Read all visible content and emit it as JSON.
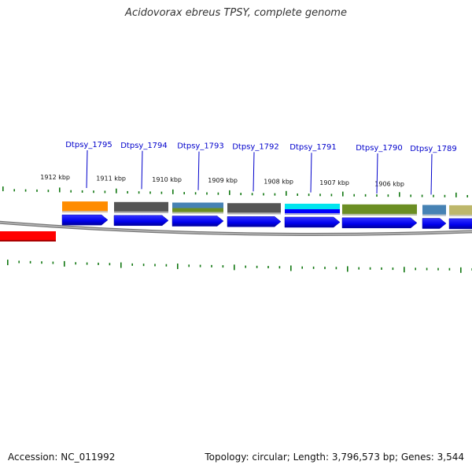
{
  "title": "Acidovorax ebreus TPSY, complete genome",
  "footer": {
    "accession": "Accession: NC_011992",
    "summary": "Topology: circular; Length: 3,796,573 bp; Genes: 3,544"
  },
  "genes": [
    {
      "id": "Dtpsy_1795",
      "strand": "plus",
      "cog_colors": [
        "#ff8c00"
      ]
    },
    {
      "id": "Dtpsy_1794",
      "strand": "plus",
      "cog_colors": [
        "#555555"
      ]
    },
    {
      "id": "Dtpsy_1793",
      "strand": "plus",
      "cog_colors": [
        "#4682b4",
        "#6b8e23"
      ]
    },
    {
      "id": "Dtpsy_1792",
      "strand": "plus",
      "cog_colors": [
        "#555555"
      ]
    },
    {
      "id": "Dtpsy_1791",
      "strand": "plus",
      "cog_colors": [
        "#00e5ee",
        "#0000ff"
      ]
    },
    {
      "id": "Dtpsy_1790",
      "strand": "plus",
      "cog_colors": [
        "#6b8e23"
      ]
    },
    {
      "id": "Dtpsy_1789",
      "strand": "plus",
      "cog_colors": [
        "#4682b4"
      ]
    },
    {
      "id": "",
      "strand": "plus",
      "cog_colors": [
        "#bdb76b"
      ]
    }
  ],
  "kbp_ticks": [
    "1912 kbp",
    "1911 kbp",
    "1910 kbp",
    "1909 kbp",
    "1908 kbp",
    "1907 kbp",
    "1906 kbp"
  ],
  "colors": {
    "gene_arrow": "#0000ff",
    "backbone": "#888888",
    "tick": "#117711",
    "minus_strand_feature": "#ff0000",
    "label": "#0000cc"
  }
}
